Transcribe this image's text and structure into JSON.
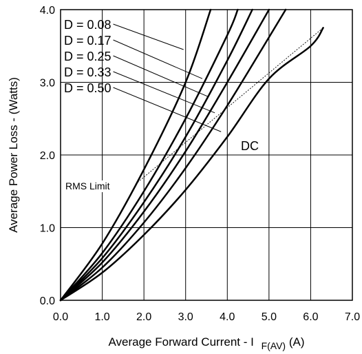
{
  "chart_data": {
    "type": "line",
    "xlabel": "Average Forward Current - I",
    "xlabel_subscript": "F(AV)",
    "xlabel_unit": "(A)",
    "ylabel": "Average Power Loss - (Watts)",
    "xlim": [
      0,
      7.0
    ],
    "ylim": [
      0,
      4.0
    ],
    "grid": true,
    "x_ticks": [
      0,
      1,
      2,
      3,
      4,
      5,
      6,
      7
    ],
    "x_tick_labels": [
      "0.0",
      "1.0",
      "2.0",
      "3.0",
      "4.0",
      "5.0",
      "6.0",
      "7.0"
    ],
    "y_ticks": [
      0,
      1,
      2,
      3,
      4
    ],
    "y_tick_labels": [
      "0.0",
      "1.0",
      "2.0",
      "3.0",
      "4.0"
    ],
    "series": [
      {
        "name": "D = 0.08",
        "points": [
          [
            0,
            0
          ],
          [
            1,
            0.78
          ],
          [
            2,
            1.8
          ],
          [
            3,
            3.0
          ],
          [
            3.6,
            4.0
          ]
        ]
      },
      {
        "name": "D = 0.17",
        "points": [
          [
            0,
            0
          ],
          [
            1,
            0.65
          ],
          [
            2,
            1.5
          ],
          [
            3,
            2.5
          ],
          [
            4,
            3.65
          ],
          [
            4.25,
            4.0
          ]
        ]
      },
      {
        "name": "D = 0.25",
        "points": [
          [
            0,
            0
          ],
          [
            1,
            0.58
          ],
          [
            2,
            1.35
          ],
          [
            3,
            2.25
          ],
          [
            4,
            3.3
          ],
          [
            4.6,
            4.0
          ]
        ]
      },
      {
        "name": "D = 0.33",
        "points": [
          [
            0,
            0
          ],
          [
            1,
            0.52
          ],
          [
            2,
            1.22
          ],
          [
            3,
            2.05
          ],
          [
            4,
            3.0
          ],
          [
            5,
            4.0
          ]
        ]
      },
      {
        "name": "D = 0.50",
        "points": [
          [
            0,
            0
          ],
          [
            1,
            0.45
          ],
          [
            2,
            1.07
          ],
          [
            3,
            1.82
          ],
          [
            4,
            2.68
          ],
          [
            5,
            3.62
          ],
          [
            5.4,
            4.0
          ]
        ]
      },
      {
        "name": "DC",
        "points": [
          [
            0,
            0
          ],
          [
            1,
            0.38
          ],
          [
            2,
            0.9
          ],
          [
            3,
            1.52
          ],
          [
            4,
            2.25
          ],
          [
            5,
            3.05
          ],
          [
            6,
            3.5
          ],
          [
            6.3,
            3.75
          ]
        ]
      }
    ],
    "rms_limit": {
      "name": "RMS Limit",
      "points": [
        [
          1.8,
          1.6
        ],
        [
          6.3,
          3.75
        ]
      ]
    },
    "annotations": {
      "dc": "DC",
      "rms_limit": "RMS Limit",
      "d_labels": [
        "D = 0.08",
        "D = 0.17",
        "D = 0.25",
        "D = 0.33",
        "D = 0.50"
      ]
    }
  }
}
